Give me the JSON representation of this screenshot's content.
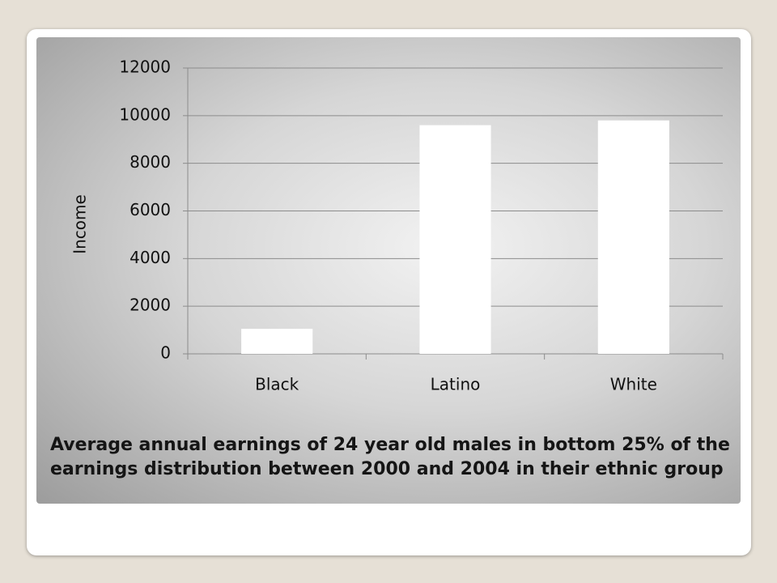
{
  "chart_data": {
    "type": "bar",
    "title": "Average annual earnings of 24 year old males in bottom 25% of the earnings distribution between 2000 and 2004 in their ethnic group",
    "y_label": "Income",
    "categories": [
      "Black",
      "Latino",
      "White"
    ],
    "values": [
      1050,
      9600,
      9800
    ],
    "color": "#ffffff",
    "ylim": [
      0,
      12000
    ],
    "yticks": [
      0,
      2000,
      4000,
      6000,
      8000,
      10000,
      12000
    ],
    "grid": true
  }
}
